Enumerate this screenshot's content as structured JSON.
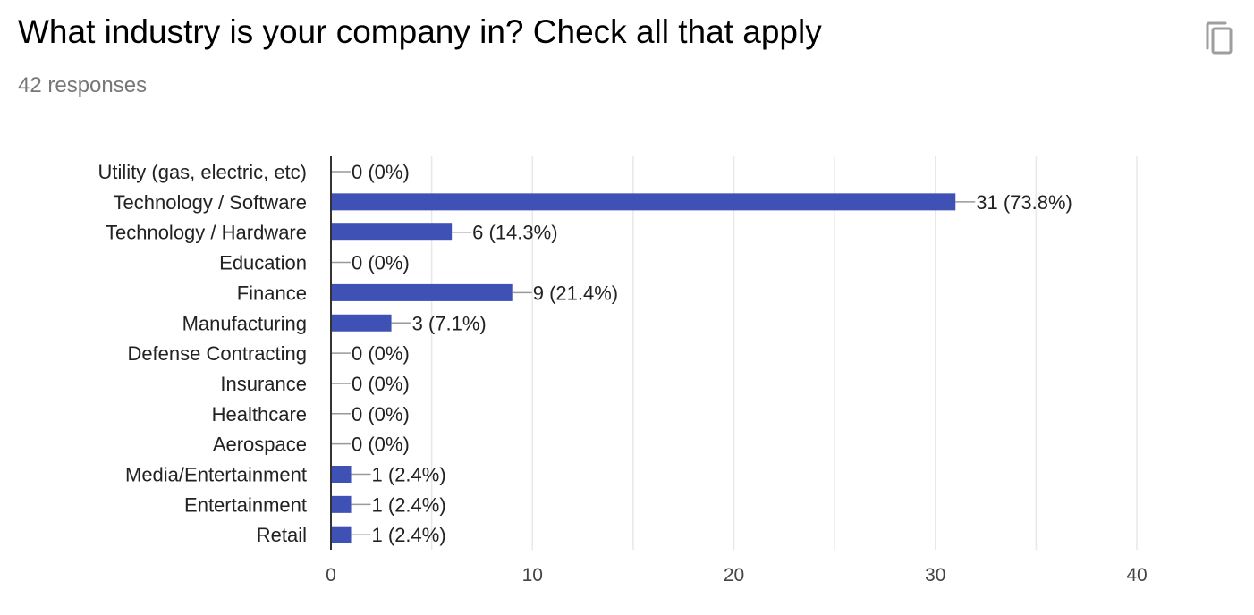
{
  "header": {
    "title": "What industry is your company in? Check all that apply",
    "responses": "42 responses",
    "copy_icon": "copy-icon"
  },
  "colors": {
    "bar": "#3f51b5",
    "grid": "#e8e8e8",
    "axis": "#333333",
    "leader": "#999999"
  },
  "chart_data": {
    "type": "bar",
    "orientation": "horizontal",
    "categories": [
      "Utility (gas, electric, etc)",
      "Technology / Software",
      "Technology / Hardware",
      "Education",
      "Finance",
      "Manufacturing",
      "Defense Contracting",
      "Insurance",
      "Healthcare",
      "Aerospace",
      "Media/Entertainment",
      "Entertainment",
      "Retail"
    ],
    "values": [
      0,
      31,
      6,
      0,
      9,
      3,
      0,
      0,
      0,
      0,
      1,
      1,
      1
    ],
    "data_labels": [
      "0 (0%)",
      "31 (73.8%)",
      "6 (14.3%)",
      "0 (0%)",
      "9 (21.4%)",
      "3 (7.1%)",
      "0 (0%)",
      "0 (0%)",
      "0 (0%)",
      "0 (0%)",
      "1 (2.4%)",
      "1 (2.4%)",
      "1 (2.4%)"
    ],
    "xlim": [
      0,
      40
    ],
    "xticks": [
      0,
      10,
      20,
      30,
      40
    ],
    "xlabel": "",
    "ylabel": "",
    "grid": true,
    "legend": "none"
  }
}
